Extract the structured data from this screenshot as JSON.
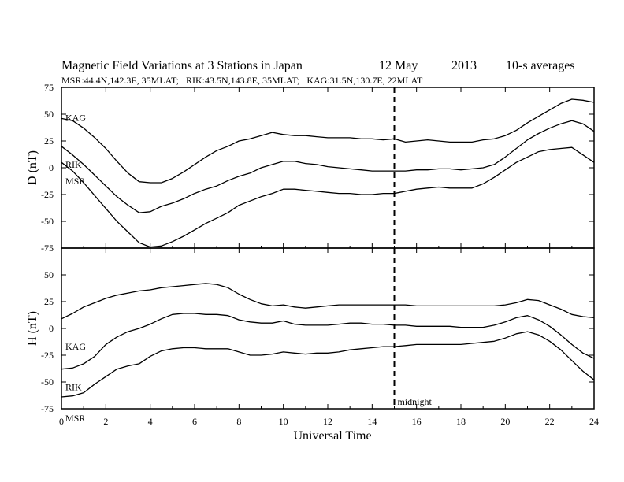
{
  "chart_data": {
    "type": "line",
    "title": "Magnetic Field Variations at 3 Stations in Japan",
    "date_day": "12 May",
    "date_year": "2013",
    "averaging": "10-s averages",
    "subtitle": "MSR:44.4N,142.3E, 35MLAT;   RIK:43.5N,143.8E, 35MLAT;   KAG:31.5N,130.7E, 22MLAT",
    "xlabel": "Universal Time",
    "xlim": [
      0,
      24
    ],
    "xticks": [
      0,
      2,
      4,
      6,
      8,
      10,
      12,
      14,
      16,
      18,
      20,
      22,
      24
    ],
    "xtick_labels": [
      "0",
      "2",
      "4",
      "6",
      "8",
      "10",
      "12",
      "14",
      "16",
      "18",
      "20",
      "22",
      "24"
    ],
    "midnight": {
      "x": 15,
      "label": "midnight"
    },
    "panels": [
      {
        "ylabel": "D (nT)",
        "ylim": [
          -75,
          75
        ],
        "yticks": [
          75,
          50,
          25,
          0,
          -25,
          -50,
          -75
        ],
        "ytick_labels": [
          "75",
          "50",
          "25",
          "0",
          "-25",
          "-50",
          "-75"
        ],
        "series": [
          {
            "name": "KAG",
            "x": [
              0,
              0.5,
              1,
              1.5,
              2,
              2.5,
              3,
              3.5,
              4,
              4.5,
              5,
              5.5,
              6,
              6.5,
              7,
              7.5,
              8,
              8.5,
              9,
              9.5,
              10,
              10.5,
              11,
              11.5,
              12,
              12.5,
              13,
              13.5,
              14,
              14.5,
              15,
              15.5,
              16,
              16.5,
              17,
              17.5,
              18,
              18.5,
              19,
              19.5,
              20,
              20.5,
              21,
              21.5,
              22,
              22.5,
              23,
              23.5,
              24
            ],
            "values": [
              46,
              44,
              37,
              28,
              18,
              6,
              -5,
              -13,
              -14,
              -14,
              -10,
              -4,
              3,
              10,
              16,
              20,
              25,
              27,
              30,
              33,
              31,
              30,
              30,
              29,
              28,
              28,
              28,
              27,
              27,
              26,
              27,
              24,
              25,
              26,
              25,
              24,
              24,
              24,
              26,
              27,
              30,
              35,
              42,
              48,
              54,
              60,
              64,
              63,
              61
            ]
          },
          {
            "name": "RIK",
            "x": [
              0,
              0.5,
              1,
              1.5,
              2,
              2.5,
              3,
              3.5,
              4,
              4.5,
              5,
              5.5,
              6,
              6.5,
              7,
              7.5,
              8,
              8.5,
              9,
              9.5,
              10,
              10.5,
              11,
              11.5,
              12,
              12.5,
              13,
              13.5,
              14,
              14.5,
              15,
              15.5,
              16,
              16.5,
              17,
              17.5,
              18,
              18.5,
              19,
              19.5,
              20,
              20.5,
              21,
              21.5,
              22,
              22.5,
              23,
              23.5,
              24
            ],
            "values": [
              20,
              12,
              3,
              -7,
              -17,
              -27,
              -35,
              -42,
              -41,
              -36,
              -33,
              -29,
              -24,
              -20,
              -17,
              -12,
              -8,
              -5,
              0,
              3,
              6,
              6,
              4,
              3,
              1,
              0,
              -1,
              -2,
              -3,
              -3,
              -3,
              -3,
              -2,
              -2,
              -1,
              -1,
              -2,
              -1,
              0,
              3,
              10,
              18,
              26,
              32,
              37,
              41,
              44,
              41,
              34
            ]
          },
          {
            "name": "MSR",
            "x": [
              0,
              0.5,
              1,
              1.5,
              2,
              2.5,
              3,
              3.5,
              4,
              4.5,
              5,
              5.5,
              6,
              6.5,
              7,
              7.5,
              8,
              8.5,
              9,
              9.5,
              10,
              10.5,
              11,
              11.5,
              12,
              12.5,
              13,
              13.5,
              14,
              14.5,
              15,
              15.5,
              16,
              16.5,
              17,
              17.5,
              18,
              18.5,
              19,
              19.5,
              20,
              20.5,
              21,
              21.5,
              22,
              22.5,
              23,
              23.5,
              24
            ],
            "values": [
              5,
              -3,
              -14,
              -26,
              -38,
              -50,
              -60,
              -70,
              -74,
              -73,
              -69,
              -64,
              -58,
              -52,
              -47,
              -42,
              -35,
              -31,
              -27,
              -24,
              -20,
              -20,
              -21,
              -22,
              -23,
              -24,
              -24,
              -25,
              -25,
              -24,
              -24,
              -22,
              -20,
              -19,
              -18,
              -19,
              -19,
              -19,
              -15,
              -9,
              -2,
              5,
              10,
              15,
              17,
              18,
              19,
              12,
              5
            ]
          }
        ]
      },
      {
        "ylabel": "H (nT)",
        "ylim": [
          -75,
          75
        ],
        "yticks": [
          75,
          50,
          25,
          0,
          -25,
          -50,
          -75
        ],
        "ytick_labels": [
          "",
          "50",
          "25",
          "0",
          "-25",
          "-50",
          "-75"
        ],
        "series": [
          {
            "name": "KAG",
            "x": [
              0,
              0.5,
              1,
              1.5,
              2,
              2.5,
              3,
              3.5,
              4,
              4.5,
              5,
              5.5,
              6,
              6.5,
              7,
              7.5,
              8,
              8.5,
              9,
              9.5,
              10,
              10.5,
              11,
              11.5,
              12,
              12.5,
              13,
              13.5,
              14,
              14.5,
              15,
              15.5,
              16,
              16.5,
              17,
              17.5,
              18,
              18.5,
              19,
              19.5,
              20,
              20.5,
              21,
              21.5,
              22,
              22.5,
              23,
              23.5,
              24
            ],
            "values": [
              9,
              14,
              20,
              24,
              28,
              31,
              33,
              35,
              36,
              38,
              39,
              40,
              41,
              42,
              41,
              38,
              32,
              27,
              23,
              21,
              22,
              20,
              19,
              20,
              21,
              22,
              22,
              22,
              22,
              22,
              22,
              22,
              21,
              21,
              21,
              21,
              21,
              21,
              21,
              21,
              22,
              24,
              27,
              26,
              22,
              18,
              13,
              11,
              10
            ]
          },
          {
            "name": "RIK",
            "x": [
              0,
              0.5,
              1,
              1.5,
              2,
              2.5,
              3,
              3.5,
              4,
              4.5,
              5,
              5.5,
              6,
              6.5,
              7,
              7.5,
              8,
              8.5,
              9,
              9.5,
              10,
              10.5,
              11,
              11.5,
              12,
              12.5,
              13,
              13.5,
              14,
              14.5,
              15,
              15.5,
              16,
              16.5,
              17,
              17.5,
              18,
              18.5,
              19,
              19.5,
              20,
              20.5,
              21,
              21.5,
              22,
              22.5,
              23,
              23.5,
              24
            ],
            "values": [
              -38,
              -37,
              -33,
              -26,
              -15,
              -8,
              -3,
              0,
              4,
              9,
              13,
              14,
              14,
              13,
              13,
              12,
              8,
              6,
              5,
              5,
              7,
              4,
              3,
              3,
              3,
              4,
              5,
              5,
              4,
              4,
              3,
              3,
              2,
              2,
              2,
              2,
              1,
              1,
              1,
              3,
              6,
              10,
              12,
              8,
              2,
              -6,
              -15,
              -23,
              -28
            ]
          },
          {
            "name": "MSR",
            "x": [
              0,
              0.5,
              1,
              1.5,
              2,
              2.5,
              3,
              3.5,
              4,
              4.5,
              5,
              5.5,
              6,
              6.5,
              7,
              7.5,
              8,
              8.5,
              9,
              9.5,
              10,
              10.5,
              11,
              11.5,
              12,
              12.5,
              13,
              13.5,
              14,
              14.5,
              15,
              15.5,
              16,
              16.5,
              17,
              17.5,
              18,
              18.5,
              19,
              19.5,
              20,
              20.5,
              21,
              21.5,
              22,
              22.5,
              23,
              23.5,
              24
            ],
            "values": [
              -64,
              -63,
              -60,
              -52,
              -45,
              -38,
              -35,
              -33,
              -26,
              -21,
              -19,
              -18,
              -18,
              -19,
              -19,
              -19,
              -22,
              -25,
              -25,
              -24,
              -22,
              -23,
              -24,
              -23,
              -23,
              -22,
              -20,
              -19,
              -18,
              -17,
              -17,
              -16,
              -15,
              -15,
              -15,
              -15,
              -15,
              -14,
              -13,
              -12,
              -9,
              -5,
              -3,
              -6,
              -12,
              -20,
              -30,
              -40,
              -48
            ]
          }
        ]
      }
    ]
  }
}
